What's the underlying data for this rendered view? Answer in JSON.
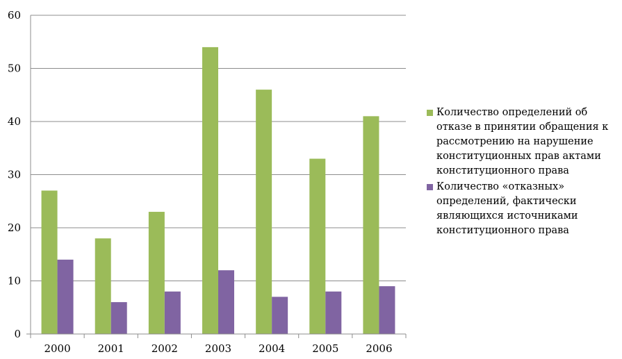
{
  "chart_data": {
    "type": "bar",
    "categories": [
      "2000",
      "2001",
      "2002",
      "2003",
      "2004",
      "2005",
      "2006"
    ],
    "series": [
      {
        "name": "Количество  определений об отказе в принятии обращения к рассмотрению на нарушение конституционных прав актами конституционного права",
        "color": "#9bbb59",
        "values": [
          27,
          18,
          23,
          54,
          46,
          33,
          41
        ]
      },
      {
        "name": "Количество «отказных» определений, фактически являющихся источниками конституционного права",
        "color": "#8064a2",
        "values": [
          14,
          6,
          8,
          12,
          7,
          8,
          9
        ]
      }
    ],
    "ylim": [
      0,
      60
    ],
    "yticks": [
      0,
      10,
      20,
      30,
      40,
      50,
      60
    ],
    "grid": true,
    "legend": "right"
  }
}
